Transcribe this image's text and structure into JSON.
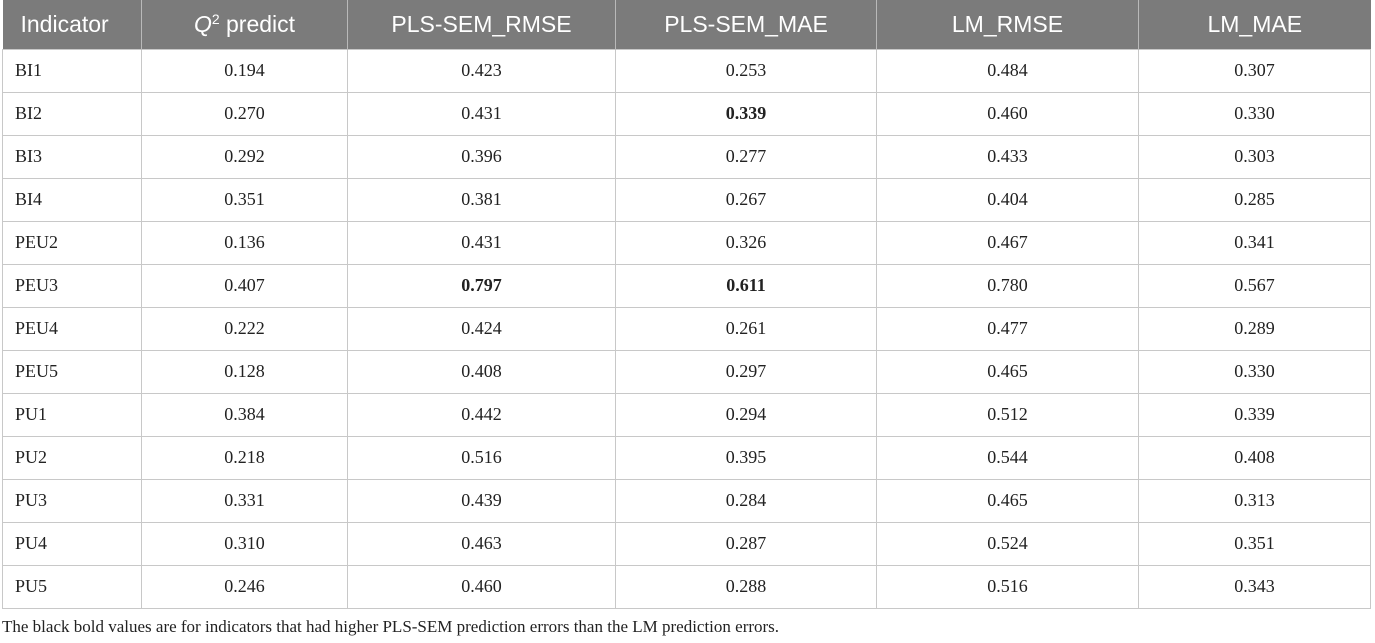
{
  "table": {
    "headers": [
      {
        "pre": "",
        "ital": "",
        "sup": "",
        "post": "Indicator"
      },
      {
        "pre": "",
        "ital": "Q",
        "sup": "2",
        "post": " predict"
      },
      {
        "pre": "",
        "ital": "",
        "sup": "",
        "post": "PLS-SEM_RMSE"
      },
      {
        "pre": "",
        "ital": "",
        "sup": "",
        "post": "PLS-SEM_MAE"
      },
      {
        "pre": "",
        "ital": "",
        "sup": "",
        "post": "LM_RMSE"
      },
      {
        "pre": "",
        "ital": "",
        "sup": "",
        "post": "LM_MAE"
      }
    ],
    "rows": [
      {
        "cells": [
          "BI1",
          "0.194",
          "0.423",
          "0.253",
          "0.484",
          "0.307"
        ],
        "bold": []
      },
      {
        "cells": [
          "BI2",
          "0.270",
          "0.431",
          "0.339",
          "0.460",
          "0.330"
        ],
        "bold": [
          3
        ]
      },
      {
        "cells": [
          "BI3",
          "0.292",
          "0.396",
          "0.277",
          "0.433",
          "0.303"
        ],
        "bold": []
      },
      {
        "cells": [
          "BI4",
          "0.351",
          "0.381",
          "0.267",
          "0.404",
          "0.285"
        ],
        "bold": []
      },
      {
        "cells": [
          "PEU2",
          "0.136",
          "0.431",
          "0.326",
          "0.467",
          "0.341"
        ],
        "bold": []
      },
      {
        "cells": [
          "PEU3",
          "0.407",
          "0.797",
          "0.611",
          "0.780",
          "0.567"
        ],
        "bold": [
          2,
          3
        ]
      },
      {
        "cells": [
          "PEU4",
          "0.222",
          "0.424",
          "0.261",
          "0.477",
          "0.289"
        ],
        "bold": []
      },
      {
        "cells": [
          "PEU5",
          "0.128",
          "0.408",
          "0.297",
          "0.465",
          "0.330"
        ],
        "bold": []
      },
      {
        "cells": [
          "PU1",
          "0.384",
          "0.442",
          "0.294",
          "0.512",
          "0.339"
        ],
        "bold": []
      },
      {
        "cells": [
          "PU2",
          "0.218",
          "0.516",
          "0.395",
          "0.544",
          "0.408"
        ],
        "bold": []
      },
      {
        "cells": [
          "PU3",
          "0.331",
          "0.439",
          "0.284",
          "0.465",
          "0.313"
        ],
        "bold": []
      },
      {
        "cells": [
          "PU4",
          "0.310",
          "0.463",
          "0.287",
          "0.524",
          "0.351"
        ],
        "bold": []
      },
      {
        "cells": [
          "PU5",
          "0.246",
          "0.460",
          "0.288",
          "0.516",
          "0.343"
        ],
        "bold": []
      }
    ]
  },
  "footnote": "The black bold values are for indicators that had higher PLS-SEM prediction errors than the LM prediction errors.",
  "colors": {
    "header_bg": "#7b7b7b",
    "header_text": "#ffffff",
    "grid": "#c8c8c8",
    "text": "#222222"
  }
}
